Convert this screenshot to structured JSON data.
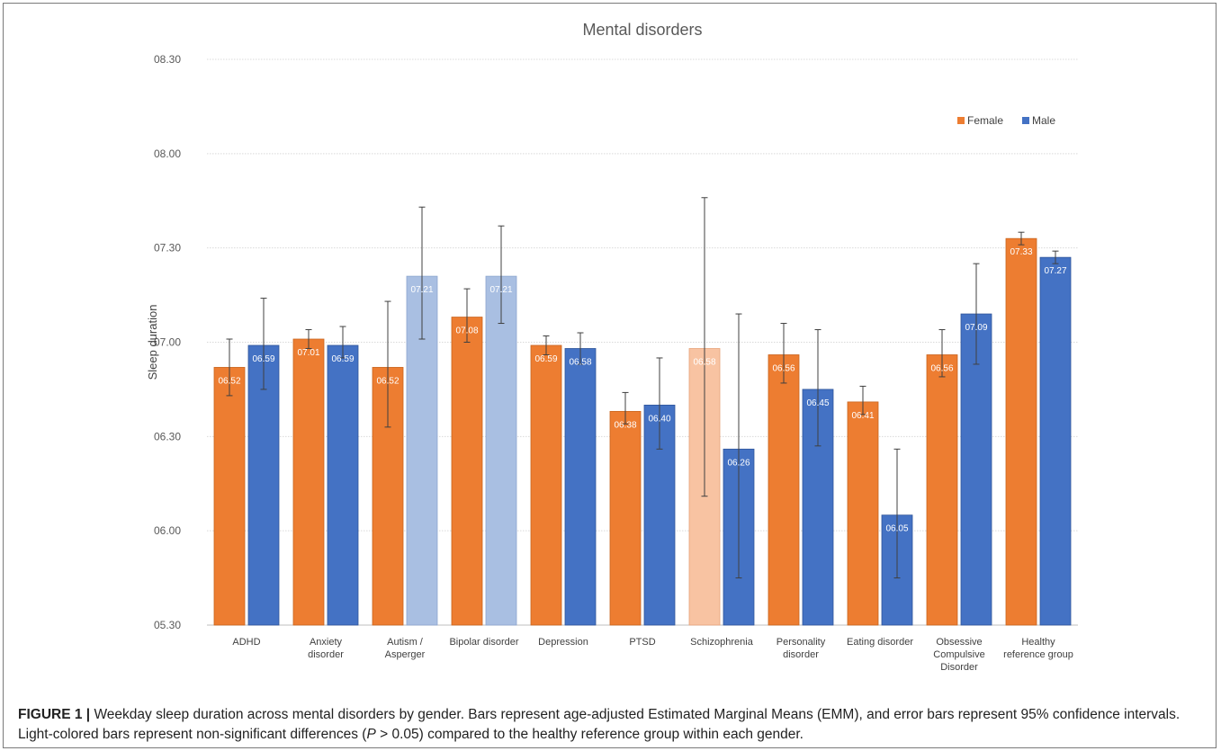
{
  "chart_data": {
    "type": "bar",
    "title": "Mental disorders",
    "ylabel": "Sleep duration",
    "xlabel": "",
    "y_ticks": [
      "05.30",
      "06.00",
      "06.30",
      "07.00",
      "07.30",
      "08.00",
      "08.30"
    ],
    "ylim": [
      "05:30",
      "08:30"
    ],
    "grid": true,
    "legend_position": "top-right",
    "categories": [
      "ADHD",
      "Anxiety disorder",
      "Autism / Asperger",
      "Bipolar disorder",
      "Depression",
      "PTSD",
      "Schizophrenia",
      "Personality disorder",
      "Eating disorder",
      "Obsessive Compulsive Disorder",
      "Healthy reference group"
    ],
    "category_lines": [
      [
        "ADHD"
      ],
      [
        "Anxiety",
        "disorder"
      ],
      [
        "Autism /",
        "Asperger"
      ],
      [
        "Bipolar disorder"
      ],
      [
        "Depression"
      ],
      [
        "PTSD"
      ],
      [
        "Schizophrenia"
      ],
      [
        "Personality",
        "disorder"
      ],
      [
        "Eating disorder"
      ],
      [
        "Obsessive",
        "Compulsive",
        "Disorder"
      ],
      [
        "Healthy",
        "reference group"
      ]
    ],
    "series": [
      {
        "name": "Female",
        "color": "#ED7D31",
        "light_color": "#F8C3A2",
        "labels": [
          "06.52",
          "07.01",
          "06.52",
          "07.08",
          "06.59",
          "06.38",
          "06.58",
          "06.56",
          "06.41",
          "06.56",
          "07.33"
        ],
        "values": [
          "06:52",
          "07:01",
          "06:52",
          "07:08",
          "06:59",
          "06:38",
          "06:58",
          "06:56",
          "06:41",
          "06:56",
          "07:33"
        ],
        "ci": [
          [
            "06:43",
            "07:01"
          ],
          [
            "06:58",
            "07:04"
          ],
          [
            "06:33",
            "07:13"
          ],
          [
            "07:00",
            "07:17"
          ],
          [
            "06:56",
            "07:02"
          ],
          [
            "06:34",
            "06:44"
          ],
          [
            "06:11",
            "07:46"
          ],
          [
            "06:47",
            "07:06"
          ],
          [
            "06:37",
            "06:46"
          ],
          [
            "06:49",
            "07:04"
          ],
          [
            "07:31",
            "07:35"
          ]
        ],
        "non_significant": [
          false,
          false,
          false,
          false,
          false,
          false,
          true,
          false,
          false,
          false,
          false
        ]
      },
      {
        "name": "Male",
        "color": "#4472C4",
        "light_color": "#A9BFE2",
        "labels": [
          "06.59",
          "06.59",
          "07.21",
          "07.21",
          "06.58",
          "06.40",
          "06.26",
          "06.45",
          "06.05",
          "07.09",
          "07.27"
        ],
        "values": [
          "06:59",
          "06:59",
          "07:21",
          "07:21",
          "06:58",
          "06:40",
          "06:26",
          "06:45",
          "06:05",
          "07:09",
          "07:27"
        ],
        "ci": [
          [
            "06:45",
            "07:14"
          ],
          [
            "06:55",
            "07:05"
          ],
          [
            "07:01",
            "07:43"
          ],
          [
            "07:06",
            "07:37"
          ],
          [
            "06:53",
            "07:03"
          ],
          [
            "06:26",
            "06:55"
          ],
          [
            "05:45",
            "07:09"
          ],
          [
            "06:27",
            "07:04"
          ],
          [
            "05:45",
            "06:26"
          ],
          [
            "06:53",
            "07:25"
          ],
          [
            "07:25",
            "07:29"
          ]
        ],
        "non_significant": [
          false,
          false,
          true,
          true,
          false,
          false,
          false,
          false,
          false,
          false,
          false
        ]
      }
    ]
  },
  "caption": {
    "label": "FIGURE 1 |",
    "text_a": " Weekday sleep duration across mental disorders by gender. Bars represent age-adjusted Estimated Marginal Means (EMM), and error bars represent 95% confidence intervals. Light-colored bars represent non-significant differences (",
    "p": "P",
    "text_b": " > 0.05) compared to the healthy reference group within each gender."
  }
}
